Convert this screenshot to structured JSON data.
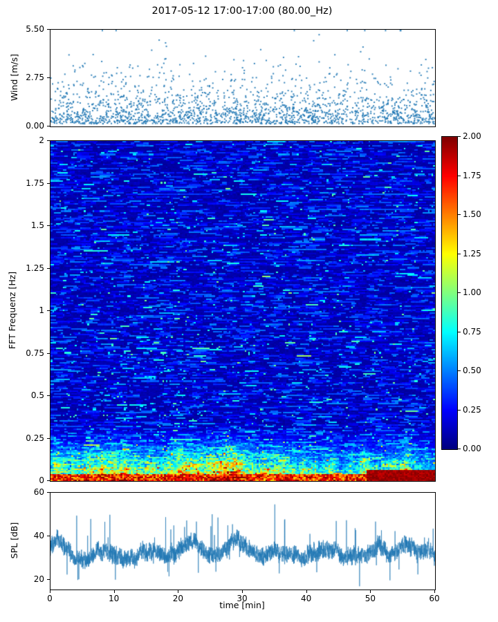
{
  "title": "2017-05-12 17:00-17:00 (80.00_Hz)",
  "colors": {
    "series": "#1f77b4",
    "axis": "#000000",
    "background": "#ffffff"
  },
  "chart_data": [
    {
      "type": "scatter",
      "name": "wind-speed",
      "ylabel": "Wind [m/s]",
      "xlim": [
        0,
        60
      ],
      "ylim": [
        0,
        5.5
      ],
      "yticks": [
        0,
        2.75,
        5.5
      ],
      "ytick_labels": [
        "0.00",
        "2.75",
        "5.50"
      ],
      "marker_color": "#1f77b4",
      "n_points": 2000,
      "y_distribution": {
        "model": "exponential",
        "offset": 0.15,
        "scale": 0.95,
        "max": 5.45
      },
      "seed": 42
    },
    {
      "type": "heatmap",
      "name": "fft-spectrogram",
      "ylabel": "FFT Frequenz [Hz]",
      "xlim": [
        0,
        60
      ],
      "ylim": [
        0,
        2
      ],
      "yticks": [
        0,
        0.25,
        0.5,
        0.75,
        1,
        1.25,
        1.5,
        1.75,
        2
      ],
      "ytick_labels": [
        "0",
        "0.25",
        "0.5",
        "0.75",
        "1",
        "1.25",
        "1.5",
        "1.75",
        "2"
      ],
      "colormap": "jet",
      "clim": [
        0,
        2
      ],
      "colorbar_ticks": [
        0,
        0.25,
        0.5,
        0.75,
        1,
        1.25,
        1.5,
        1.75,
        2
      ],
      "colorbar_tick_labels": [
        "0.00",
        "0.25",
        "0.50",
        "0.75",
        "1.00",
        "1.25",
        "1.50",
        "1.75",
        "2.00"
      ],
      "grid": {
        "cols": 220,
        "rows": 240
      },
      "features": {
        "background_level_range": [
          0.07,
          0.5
        ],
        "low_freq_band_max_hz": 0.34,
        "low_freq_peak_value": 2.0,
        "hot_block": {
          "t_min": 49.5,
          "t_max": 60,
          "f_max": 0.06,
          "value": 2.0
        }
      },
      "seed": 1234
    },
    {
      "type": "line",
      "name": "spl",
      "ylabel": "SPL [dB]",
      "xlabel": "time [min]",
      "xlim": [
        0,
        60
      ],
      "ylim": [
        15.5,
        60
      ],
      "yticks": [
        20,
        40,
        60
      ],
      "ytick_labels": [
        "20",
        "40",
        "60"
      ],
      "xticks": [
        0,
        10,
        20,
        30,
        40,
        50,
        60
      ],
      "xtick_labels": [
        "0",
        "10",
        "20",
        "30",
        "40",
        "50",
        "60"
      ],
      "line_color": "#1f77b4",
      "baseline_db": 33,
      "value_range_db": [
        20,
        55
      ],
      "n_points": 3200,
      "seed": 7
    }
  ]
}
